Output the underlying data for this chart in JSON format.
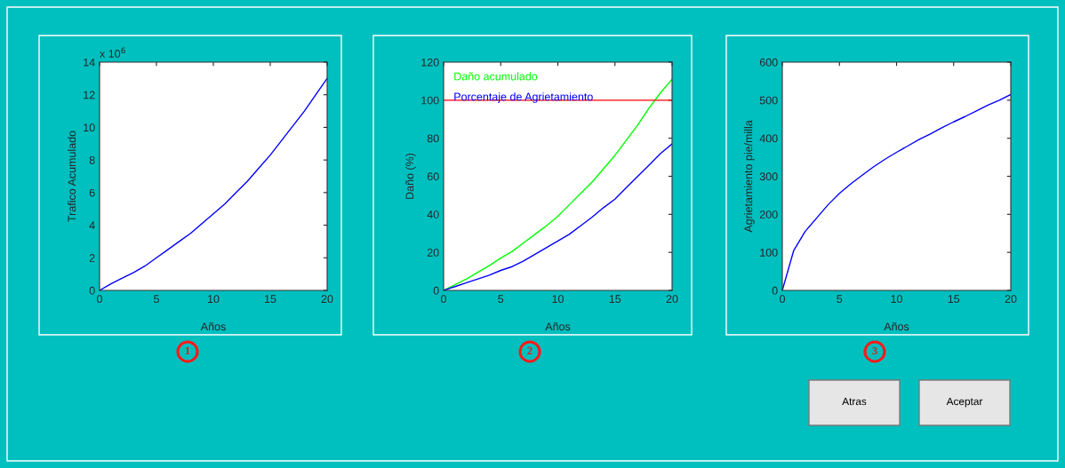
{
  "chart_data": [
    {
      "type": "line",
      "xlabel": "Años",
      "ylabel": "Trafico Acumulado",
      "annotations": [
        "x 10$^{6}$",
        "1"
      ],
      "x": [
        0,
        1,
        2,
        3,
        4,
        5,
        6,
        7,
        8,
        9,
        10,
        11,
        12,
        13,
        14,
        15,
        16,
        17,
        18,
        19,
        20
      ],
      "series": [
        {
          "color": "#0000ff",
          "values": [
            0,
            0.4,
            0.75,
            1.1,
            1.5,
            2.0,
            2.5,
            3.0,
            3.5,
            4.1,
            4.7,
            5.3,
            6.0,
            6.7,
            7.5,
            8.3,
            9.2,
            10.1,
            11.0,
            12.0,
            13.0
          ]
        }
      ],
      "xlim": [
        0,
        20
      ],
      "xticks": [
        0,
        5,
        10,
        15,
        20
      ],
      "ylim": [
        0,
        14
      ],
      "yticks": [
        0,
        2,
        4,
        6,
        8,
        10,
        12,
        14
      ],
      "grid": false,
      "legend": false
    },
    {
      "type": "line",
      "xlabel": "Años",
      "ylabel": "Daño (%)",
      "annotations": [
        "2"
      ],
      "x": [
        0,
        1,
        2,
        3,
        4,
        5,
        6,
        7,
        8,
        9,
        10,
        11,
        12,
        13,
        14,
        15,
        16,
        17,
        18,
        19,
        20
      ],
      "series": [
        {
          "name": "Daño acumulado",
          "color": "#00ff00",
          "values": [
            0,
            3,
            6,
            9.5,
            13,
            17,
            20.5,
            25,
            29.5,
            34,
            39,
            45,
            51,
            57,
            64,
            71,
            79,
            87,
            96,
            104,
            111
          ]
        },
        {
          "name": "Porcentaje de Agrietamiento",
          "color": "#0000ff",
          "values": [
            0,
            2,
            4,
            6,
            8,
            10.5,
            12.5,
            15.5,
            19,
            22.5,
            26,
            29.5,
            34,
            38.5,
            43.5,
            48,
            54,
            60,
            66,
            72,
            77
          ]
        }
      ],
      "ref_lines": [
        {
          "axis": "y",
          "value": 100,
          "color": "#ff0000"
        }
      ],
      "xlim": [
        0,
        20
      ],
      "xticks": [
        0,
        5,
        10,
        15,
        20
      ],
      "ylim": [
        0,
        120
      ],
      "yticks": [
        0,
        20,
        40,
        60,
        80,
        100,
        120
      ],
      "grid": false,
      "legend": "top left"
    },
    {
      "type": "line",
      "xlabel": "Años",
      "ylabel": "Agrietamiento pie/milla",
      "annotations": [
        "3"
      ],
      "x": [
        0,
        1,
        2,
        3,
        4,
        5,
        6,
        7,
        8,
        9,
        10,
        11,
        12,
        13,
        14,
        15,
        16,
        17,
        18,
        19,
        20
      ],
      "series": [
        {
          "color": "#0000ff",
          "values": [
            0,
            105,
            155,
            190,
            225,
            255,
            280,
            303,
            325,
            345,
            363,
            380,
            397,
            412,
            428,
            443,
            457,
            472,
            487,
            500,
            515
          ]
        }
      ],
      "xlim": [
        0,
        20
      ],
      "xticks": [
        0,
        5,
        10,
        15,
        20
      ],
      "ylim": [
        0,
        600
      ],
      "yticks": [
        0,
        100,
        200,
        300,
        400,
        500,
        600
      ],
      "grid": false,
      "legend": false
    },
    {
      "type": "other",
      "annotations": [
        "Atras",
        "Aceptar"
      ]
    }
  ]
}
